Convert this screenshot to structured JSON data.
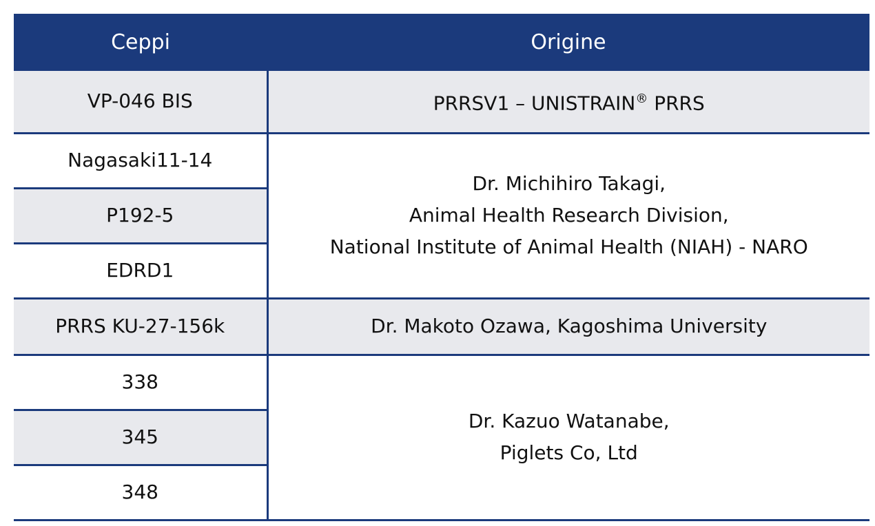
{
  "header": {
    "col1": "Ceppi",
    "col2": "Origine"
  },
  "rows": [
    {
      "ceppo": "VP-046 BIS"
    },
    {
      "ceppo": "Nagasaki11-14"
    },
    {
      "ceppo": "P192-5"
    },
    {
      "ceppo": "EDRD1"
    },
    {
      "ceppo": "PRRS KU-27-156k"
    },
    {
      "ceppo": "338"
    },
    {
      "ceppo": "345"
    },
    {
      "ceppo": "348"
    }
  ],
  "origins": {
    "o1": {
      "a": "PRRSV1 – UNISTRAIN",
      "sup": "®",
      "b": " PRRS"
    },
    "o2": [
      "Dr. Michihiro Takagi,",
      "Animal Health Research Division,",
      "National Institute of Animal Health (NIAH) - NARO"
    ],
    "o3": "Dr. Makoto Ozawa, Kagoshima University",
    "o4": [
      "Dr. Kazuo Watanabe,",
      "Piglets Co, Ltd"
    ]
  },
  "colors": {
    "header": "#1b3a7c",
    "stripe": "#e8e9ed"
  }
}
